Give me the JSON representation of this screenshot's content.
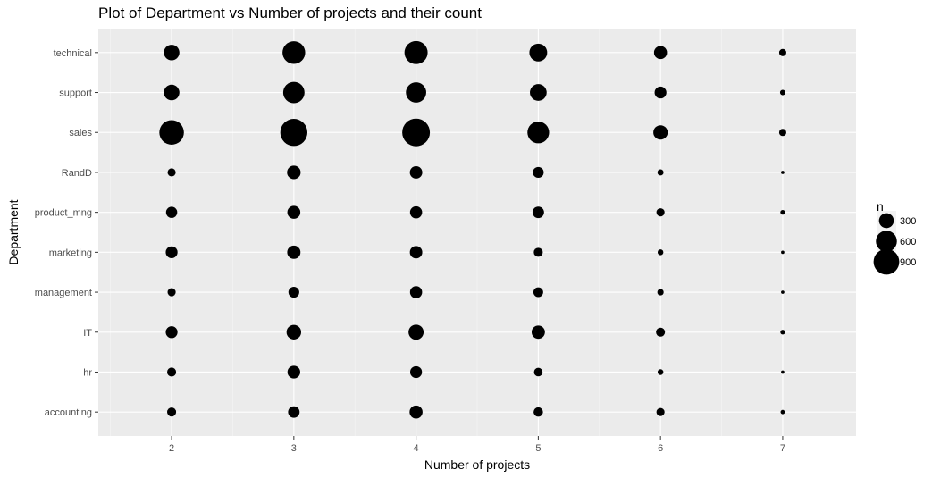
{
  "chart_data": {
    "type": "scatter",
    "title": "Plot of Department vs Number of projects and their count",
    "xlabel": "Number of projects",
    "ylabel": "Department",
    "x_ticks": [
      2,
      3,
      4,
      5,
      6,
      7
    ],
    "y_categories": [
      "accounting",
      "hr",
      "IT",
      "management",
      "marketing",
      "product_mng",
      "RandD",
      "sales",
      "support",
      "technical"
    ],
    "legend": {
      "title": "n",
      "placement": "right",
      "sizes": [
        300,
        600,
        900
      ]
    },
    "grid": true,
    "points": [
      {
        "x": 2,
        "y": "technical",
        "n": 330
      },
      {
        "x": 3,
        "y": "technical",
        "n": 700
      },
      {
        "x": 4,
        "y": "technical",
        "n": 730
      },
      {
        "x": 5,
        "y": "technical",
        "n": 430
      },
      {
        "x": 6,
        "y": "technical",
        "n": 230
      },
      {
        "x": 7,
        "y": "technical",
        "n": 70
      },
      {
        "x": 2,
        "y": "support",
        "n": 330
      },
      {
        "x": 3,
        "y": "support",
        "n": 620
      },
      {
        "x": 4,
        "y": "support",
        "n": 560
      },
      {
        "x": 5,
        "y": "support",
        "n": 380
      },
      {
        "x": 6,
        "y": "support",
        "n": 190
      },
      {
        "x": 7,
        "y": "support",
        "n": 40
      },
      {
        "x": 2,
        "y": "sales",
        "n": 820
      },
      {
        "x": 3,
        "y": "sales",
        "n": 1000
      },
      {
        "x": 4,
        "y": "sales",
        "n": 1040
      },
      {
        "x": 5,
        "y": "sales",
        "n": 640
      },
      {
        "x": 6,
        "y": "sales",
        "n": 280
      },
      {
        "x": 7,
        "y": "sales",
        "n": 70
      },
      {
        "x": 2,
        "y": "RandD",
        "n": 90
      },
      {
        "x": 3,
        "y": "RandD",
        "n": 250
      },
      {
        "x": 4,
        "y": "RandD",
        "n": 210
      },
      {
        "x": 5,
        "y": "RandD",
        "n": 160
      },
      {
        "x": 6,
        "y": "RandD",
        "n": 50
      },
      {
        "x": 7,
        "y": "RandD",
        "n": 15
      },
      {
        "x": 2,
        "y": "product_mng",
        "n": 170
      },
      {
        "x": 3,
        "y": "product_mng",
        "n": 230
      },
      {
        "x": 4,
        "y": "product_mng",
        "n": 200
      },
      {
        "x": 5,
        "y": "product_mng",
        "n": 180
      },
      {
        "x": 6,
        "y": "product_mng",
        "n": 90
      },
      {
        "x": 7,
        "y": "product_mng",
        "n": 30
      },
      {
        "x": 2,
        "y": "marketing",
        "n": 190
      },
      {
        "x": 3,
        "y": "marketing",
        "n": 240
      },
      {
        "x": 4,
        "y": "marketing",
        "n": 210
      },
      {
        "x": 5,
        "y": "marketing",
        "n": 110
      },
      {
        "x": 6,
        "y": "marketing",
        "n": 45
      },
      {
        "x": 7,
        "y": "marketing",
        "n": 15
      },
      {
        "x": 2,
        "y": "management",
        "n": 90
      },
      {
        "x": 3,
        "y": "management",
        "n": 160
      },
      {
        "x": 4,
        "y": "management",
        "n": 200
      },
      {
        "x": 5,
        "y": "management",
        "n": 130
      },
      {
        "x": 6,
        "y": "management",
        "n": 55
      },
      {
        "x": 7,
        "y": "management",
        "n": 15
      },
      {
        "x": 2,
        "y": "IT",
        "n": 190
      },
      {
        "x": 3,
        "y": "IT",
        "n": 290
      },
      {
        "x": 4,
        "y": "IT",
        "n": 310
      },
      {
        "x": 5,
        "y": "IT",
        "n": 240
      },
      {
        "x": 6,
        "y": "IT",
        "n": 110
      },
      {
        "x": 7,
        "y": "IT",
        "n": 30
      },
      {
        "x": 2,
        "y": "hr",
        "n": 110
      },
      {
        "x": 3,
        "y": "hr",
        "n": 220
      },
      {
        "x": 4,
        "y": "hr",
        "n": 190
      },
      {
        "x": 5,
        "y": "hr",
        "n": 100
      },
      {
        "x": 6,
        "y": "hr",
        "n": 45
      },
      {
        "x": 7,
        "y": "hr",
        "n": 15
      },
      {
        "x": 2,
        "y": "accounting",
        "n": 110
      },
      {
        "x": 3,
        "y": "accounting",
        "n": 180
      },
      {
        "x": 4,
        "y": "accounting",
        "n": 230
      },
      {
        "x": 5,
        "y": "accounting",
        "n": 120
      },
      {
        "x": 6,
        "y": "accounting",
        "n": 90
      },
      {
        "x": 7,
        "y": "accounting",
        "n": 25
      }
    ]
  }
}
